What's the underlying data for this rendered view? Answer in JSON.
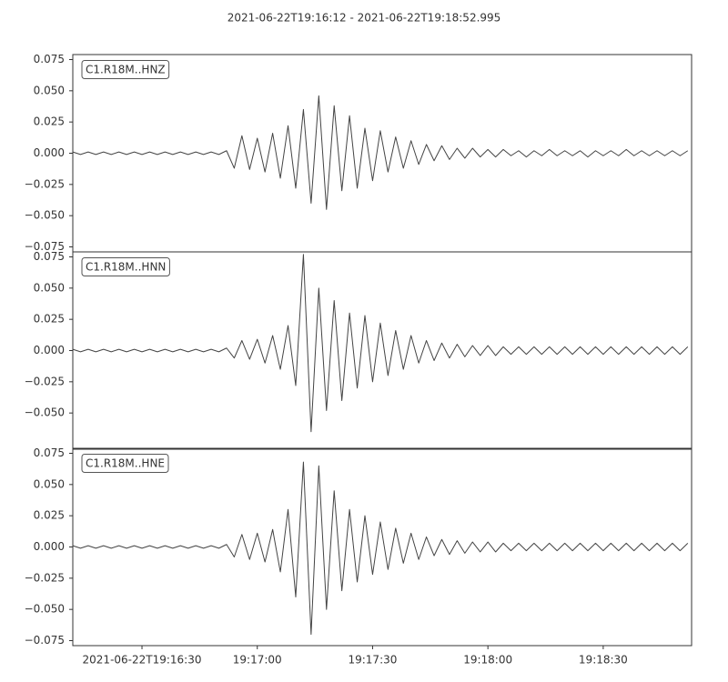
{
  "title": "2021-06-22T19:16:12  -  2021-06-22T19:18:52.995",
  "chart_data": {
    "type": "line",
    "color": "#444444",
    "xlim": [
      "2021-06-22T19:16:12",
      "2021-06-22T19:18:52.995"
    ],
    "xticks": [
      "2021-06-22T19:16:30",
      {
        "value": "2021-06-22T19:17:00",
        "label": "19:17:00"
      },
      {
        "value": "2021-06-22T19:17:30",
        "label": "19:17:30"
      },
      {
        "value": "2021-06-22T19:18:00",
        "label": "19:18:00"
      },
      {
        "value": "2021-06-22T19:18:30",
        "label": "19:18:30"
      }
    ],
    "x": [
      "2021-06-22T19:16:12",
      "2021-06-22T19:16:14",
      "2021-06-22T19:16:16",
      "2021-06-22T19:16:18",
      "2021-06-22T19:16:20",
      "2021-06-22T19:16:22",
      "2021-06-22T19:16:24",
      "2021-06-22T19:16:26",
      "2021-06-22T19:16:28",
      "2021-06-22T19:16:30",
      "2021-06-22T19:16:32",
      "2021-06-22T19:16:34",
      "2021-06-22T19:16:36",
      "2021-06-22T19:16:38",
      "2021-06-22T19:16:40",
      "2021-06-22T19:16:42",
      "2021-06-22T19:16:44",
      "2021-06-22T19:16:46",
      "2021-06-22T19:16:48",
      "2021-06-22T19:16:50",
      "2021-06-22T19:16:52",
      "2021-06-22T19:16:54",
      "2021-06-22T19:16:56",
      "2021-06-22T19:16:58",
      "2021-06-22T19:17:00",
      "2021-06-22T19:17:02",
      "2021-06-22T19:17:04",
      "2021-06-22T19:17:06",
      "2021-06-22T19:17:08",
      "2021-06-22T19:17:10",
      "2021-06-22T19:17:12",
      "2021-06-22T19:17:14",
      "2021-06-22T19:17:16",
      "2021-06-22T19:17:18",
      "2021-06-22T19:17:20",
      "2021-06-22T19:17:22",
      "2021-06-22T19:17:24",
      "2021-06-22T19:17:26",
      "2021-06-22T19:17:28",
      "2021-06-22T19:17:30",
      "2021-06-22T19:17:32",
      "2021-06-22T19:17:34",
      "2021-06-22T19:17:36",
      "2021-06-22T19:17:38",
      "2021-06-22T19:17:40",
      "2021-06-22T19:17:42",
      "2021-06-22T19:17:44",
      "2021-06-22T19:17:46",
      "2021-06-22T19:17:48",
      "2021-06-22T19:17:50",
      "2021-06-22T19:17:52",
      "2021-06-22T19:17:54",
      "2021-06-22T19:17:56",
      "2021-06-22T19:17:58",
      "2021-06-22T19:18:00",
      "2021-06-22T19:18:02",
      "2021-06-22T19:18:04",
      "2021-06-22T19:18:06",
      "2021-06-22T19:18:08",
      "2021-06-22T19:18:10",
      "2021-06-22T19:18:12",
      "2021-06-22T19:18:14",
      "2021-06-22T19:18:16",
      "2021-06-22T19:18:18",
      "2021-06-22T19:18:20",
      "2021-06-22T19:18:22",
      "2021-06-22T19:18:24",
      "2021-06-22T19:18:26",
      "2021-06-22T19:18:28",
      "2021-06-22T19:18:30",
      "2021-06-22T19:18:32",
      "2021-06-22T19:18:34",
      "2021-06-22T19:18:36",
      "2021-06-22T19:18:38",
      "2021-06-22T19:18:40",
      "2021-06-22T19:18:42",
      "2021-06-22T19:18:44",
      "2021-06-22T19:18:46",
      "2021-06-22T19:18:48",
      "2021-06-22T19:18:50",
      "2021-06-22T19:18:52"
    ],
    "panels": [
      {
        "name": "C1.R18M..HNZ",
        "ylim": [
          -0.079,
          0.079
        ],
        "yticks": [
          {
            "value": -0.075,
            "label": "−0.075"
          },
          {
            "value": -0.05,
            "label": "−0.050"
          },
          {
            "value": -0.025,
            "label": "−0.025"
          },
          {
            "value": 0,
            "label": "0.000"
          },
          {
            "value": 0.025,
            "label": "0.025"
          },
          {
            "value": 0.05,
            "label": "0.050"
          },
          {
            "value": 0.075,
            "label": "0.075"
          }
        ],
        "values": [
          0.001,
          -0.001,
          0.001,
          -0.001,
          0.001,
          -0.001,
          0.001,
          -0.001,
          0.001,
          -0.001,
          0.001,
          -0.001,
          0.001,
          -0.001,
          0.001,
          -0.001,
          0.001,
          -0.001,
          0.001,
          -0.001,
          0.002,
          -0.012,
          0.014,
          -0.013,
          0.012,
          -0.015,
          0.016,
          -0.02,
          0.022,
          -0.028,
          0.035,
          -0.04,
          0.046,
          -0.045,
          0.038,
          -0.03,
          0.03,
          -0.028,
          0.02,
          -0.022,
          0.018,
          -0.015,
          0.013,
          -0.012,
          0.01,
          -0.009,
          0.007,
          -0.006,
          0.006,
          -0.005,
          0.004,
          -0.004,
          0.004,
          -0.003,
          0.003,
          -0.003,
          0.003,
          -0.002,
          0.002,
          -0.003,
          0.002,
          -0.002,
          0.003,
          -0.002,
          0.002,
          -0.002,
          0.002,
          -0.003,
          0.002,
          -0.002,
          0.002,
          -0.002,
          0.003,
          -0.002,
          0.002,
          -0.002,
          0.002,
          -0.002,
          0.002,
          -0.002,
          0.002
        ]
      },
      {
        "name": "C1.R18M..HNN",
        "ylim": [
          -0.079,
          0.079
        ],
        "yticks": [
          {
            "value": -0.05,
            "label": "−0.050"
          },
          {
            "value": -0.025,
            "label": "−0.025"
          },
          {
            "value": 0,
            "label": "0.000"
          },
          {
            "value": 0.025,
            "label": "0.025"
          },
          {
            "value": 0.05,
            "label": "0.050"
          },
          {
            "value": 0.075,
            "label": "0.075"
          }
        ],
        "values": [
          0.001,
          -0.001,
          0.001,
          -0.001,
          0.001,
          -0.001,
          0.001,
          -0.001,
          0.001,
          -0.001,
          0.001,
          -0.001,
          0.001,
          -0.001,
          0.001,
          -0.001,
          0.001,
          -0.001,
          0.001,
          -0.001,
          0.002,
          -0.006,
          0.008,
          -0.007,
          0.009,
          -0.01,
          0.012,
          -0.015,
          0.02,
          -0.028,
          0.077,
          -0.065,
          0.05,
          -0.048,
          0.04,
          -0.04,
          0.03,
          -0.03,
          0.028,
          -0.025,
          0.022,
          -0.02,
          0.016,
          -0.015,
          0.012,
          -0.01,
          0.008,
          -0.008,
          0.006,
          -0.006,
          0.005,
          -0.005,
          0.004,
          -0.004,
          0.004,
          -0.004,
          0.003,
          -0.003,
          0.003,
          -0.003,
          0.003,
          -0.003,
          0.003,
          -0.003,
          0.003,
          -0.003,
          0.003,
          -0.003,
          0.003,
          -0.003,
          0.003,
          -0.003,
          0.003,
          -0.003,
          0.003,
          -0.003,
          0.003,
          -0.003,
          0.003,
          -0.003,
          0.003
        ]
      },
      {
        "name": "C1.R18M..HNE",
        "ylim": [
          -0.079,
          0.079
        ],
        "yticks": [
          {
            "value": -0.075,
            "label": "−0.075"
          },
          {
            "value": -0.05,
            "label": "−0.050"
          },
          {
            "value": -0.025,
            "label": "−0.025"
          },
          {
            "value": 0,
            "label": "0.000"
          },
          {
            "value": 0.025,
            "label": "0.025"
          },
          {
            "value": 0.05,
            "label": "0.050"
          },
          {
            "value": 0.075,
            "label": "0.075"
          }
        ],
        "values": [
          0.001,
          -0.001,
          0.001,
          -0.001,
          0.001,
          -0.001,
          0.001,
          -0.001,
          0.001,
          -0.001,
          0.001,
          -0.001,
          0.001,
          -0.001,
          0.001,
          -0.001,
          0.001,
          -0.001,
          0.001,
          -0.001,
          0.002,
          -0.008,
          0.01,
          -0.01,
          0.011,
          -0.012,
          0.014,
          -0.02,
          0.03,
          -0.04,
          0.068,
          -0.07,
          0.065,
          -0.05,
          0.045,
          -0.035,
          0.03,
          -0.028,
          0.025,
          -0.022,
          0.02,
          -0.018,
          0.015,
          -0.013,
          0.011,
          -0.01,
          0.008,
          -0.007,
          0.006,
          -0.006,
          0.005,
          -0.005,
          0.004,
          -0.004,
          0.004,
          -0.004,
          0.003,
          -0.003,
          0.003,
          -0.003,
          0.003,
          -0.003,
          0.003,
          -0.003,
          0.003,
          -0.003,
          0.003,
          -0.003,
          0.003,
          -0.003,
          0.003,
          -0.003,
          0.003,
          -0.003,
          0.003,
          -0.003,
          0.003,
          -0.003,
          0.003,
          -0.003,
          0.003
        ]
      }
    ]
  }
}
